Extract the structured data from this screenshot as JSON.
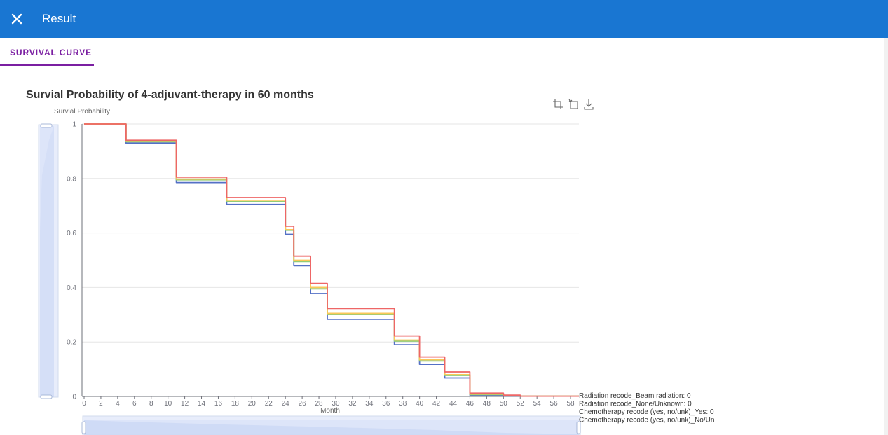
{
  "appbar": {
    "title": "Result",
    "close_icon": "close-icon",
    "color": "#1976d2"
  },
  "tabs": [
    {
      "label": "SURVIVAL CURVE",
      "active": true
    }
  ],
  "chart_data": {
    "type": "line",
    "title": "Survial Probability of 4-adjuvant-therapy in 60 months",
    "ylabel": "Survial Probability",
    "xlabel": "Month",
    "ylim": [
      0,
      1
    ],
    "xlim": [
      0,
      59
    ],
    "yticks": [
      "1",
      "0.8",
      "0.6",
      "0.4",
      "0.2",
      "0"
    ],
    "xticks": [
      "0",
      "2",
      "4",
      "6",
      "8",
      "10",
      "12",
      "14",
      "16",
      "18",
      "20",
      "22",
      "24",
      "26",
      "28",
      "30",
      "32",
      "34",
      "36",
      "38",
      "40",
      "42",
      "44",
      "46",
      "48",
      "50",
      "52",
      "54",
      "56",
      "58"
    ],
    "step": true,
    "steps_x": [
      0,
      4,
      5,
      9,
      11,
      16,
      17,
      23,
      24,
      25,
      26,
      27,
      28,
      29,
      30,
      36,
      37,
      39,
      40,
      42,
      43,
      45,
      46,
      49,
      50,
      52,
      59
    ],
    "series": [
      {
        "name": "Radiation recode_Beam radiation: 0",
        "color": "#5470c6",
        "values": [
          1,
          1,
          0.93,
          0.93,
          0.785,
          0.785,
          0.705,
          0.705,
          0.595,
          0.48,
          0.48,
          0.378,
          0.378,
          0.283,
          0.283,
          0.283,
          0.19,
          0.19,
          0.118,
          0.118,
          0.068,
          0.068,
          0.005,
          0.005,
          0.002,
          0.001,
          0.001
        ]
      },
      {
        "name": "Radiation recode_None/Unknown: 0",
        "color": "#91cc75",
        "values": [
          1,
          1,
          0.935,
          0.935,
          0.795,
          0.795,
          0.715,
          0.715,
          0.61,
          0.495,
          0.495,
          0.395,
          0.395,
          0.302,
          0.302,
          0.302,
          0.203,
          0.203,
          0.13,
          0.13,
          0.077,
          0.077,
          0.007,
          0.007,
          0.003,
          0.001,
          0.001
        ]
      },
      {
        "name": "Chemotherapy recode (yes, no/unk)_Yes: 0",
        "color": "#fac858",
        "values": [
          1,
          1,
          0.937,
          0.937,
          0.798,
          0.798,
          0.72,
          0.72,
          0.612,
          0.5,
          0.5,
          0.4,
          0.4,
          0.305,
          0.305,
          0.305,
          0.207,
          0.207,
          0.135,
          0.135,
          0.08,
          0.08,
          0.009,
          0.009,
          0.004,
          0.001,
          0.001
        ]
      },
      {
        "name": "Chemotherapy recode (yes, no/unk)_No/Un",
        "color": "#ee6666",
        "values": [
          1,
          1,
          0.94,
          0.94,
          0.805,
          0.805,
          0.73,
          0.73,
          0.625,
          0.515,
          0.515,
          0.415,
          0.415,
          0.323,
          0.323,
          0.323,
          0.222,
          0.222,
          0.145,
          0.145,
          0.09,
          0.09,
          0.012,
          0.012,
          0.005,
          0.001,
          0.001
        ]
      }
    ],
    "legend_placement": "bottom-right",
    "grid": true
  },
  "toolbox": [
    {
      "icon": "zoom-icon"
    },
    {
      "icon": "zoom-reset-icon"
    },
    {
      "icon": "download-icon"
    }
  ]
}
